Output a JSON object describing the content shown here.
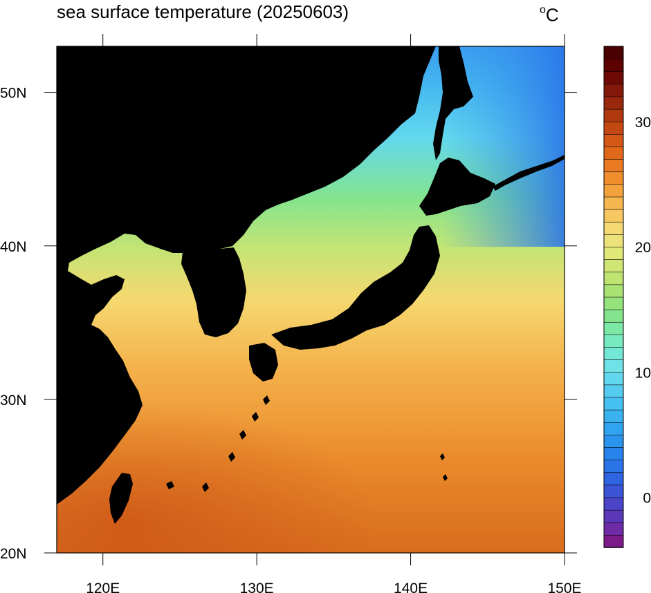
{
  "title": "sea surface temperature (20250603)",
  "unit": {
    "degree": "o",
    "letter": "C"
  },
  "map": {
    "projection": "cylindrical-equidistant",
    "lon_range": [
      117,
      150
    ],
    "lat_range": [
      20,
      53
    ],
    "land_color": "#000000",
    "lon_ticks": [
      {
        "value": 120,
        "label": "120E"
      },
      {
        "value": 130,
        "label": "130E"
      },
      {
        "value": 140,
        "label": "140E"
      },
      {
        "value": 150,
        "label": "150E"
      }
    ],
    "lat_ticks": [
      {
        "value": 20,
        "label": "20N"
      },
      {
        "value": 30,
        "label": "30N"
      },
      {
        "value": 40,
        "label": "40N"
      },
      {
        "value": 50,
        "label": "50N"
      }
    ]
  },
  "colorbar": {
    "min": -4,
    "max": 36,
    "step": 1,
    "labeled_ticks": [
      {
        "value": 0,
        "label": "0"
      },
      {
        "value": 10,
        "label": "10"
      },
      {
        "value": 20,
        "label": "20"
      },
      {
        "value": 30,
        "label": "30"
      }
    ],
    "palette": [
      "#7d1a8a",
      "#6f2aa6",
      "#5a36b8",
      "#4a44c8",
      "#3c54d6",
      "#2f64e0",
      "#2a74e8",
      "#2884ec",
      "#2a94ee",
      "#30a4f0",
      "#3ab2f0",
      "#46c0f0",
      "#54ccf0",
      "#62d8ee",
      "#6ee2e6",
      "#74e8d6",
      "#78eac0",
      "#7ce8a6",
      "#84e48e",
      "#96e27c",
      "#aae274",
      "#bee472",
      "#d0e674",
      "#e0e878",
      "#ece27a",
      "#f4d872",
      "#f6c862",
      "#f6b650",
      "#f4a23e",
      "#f08e2e",
      "#ea7a22",
      "#e0681a",
      "#d45816",
      "#c44812",
      "#b0380e",
      "#9a280c",
      "#84180a",
      "#6e0a06",
      "#5c0000",
      "#4a0000"
    ]
  }
}
